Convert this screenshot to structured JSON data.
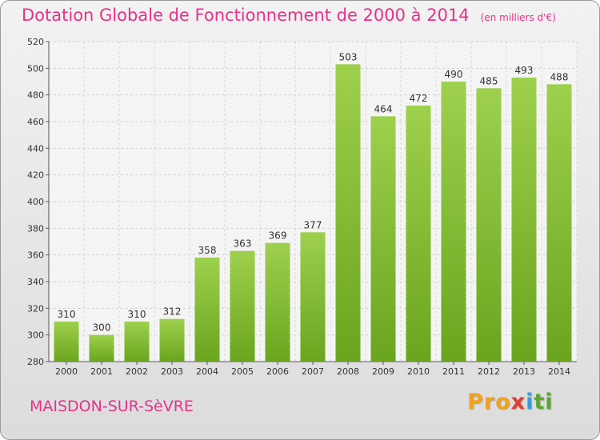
{
  "chart_data": {
    "type": "bar",
    "title": "Dotation Globale de Fonctionnement de 2000 à 2014",
    "subtitle": "(en milliers d'€)",
    "categories": [
      "2000",
      "2001",
      "2002",
      "2003",
      "2004",
      "2005",
      "2006",
      "2007",
      "2008",
      "2009",
      "2010",
      "2011",
      "2012",
      "2013",
      "2014"
    ],
    "values": [
      310,
      300,
      310,
      312,
      358,
      363,
      369,
      377,
      503,
      464,
      472,
      490,
      485,
      493,
      488
    ],
    "ylim": [
      280,
      520
    ],
    "yticks": [
      280,
      300,
      320,
      340,
      360,
      380,
      400,
      420,
      440,
      460,
      480,
      500,
      520
    ],
    "xlabel": "",
    "ylabel": "",
    "grid": true
  },
  "footer": {
    "city": "MAISDON-SUR-SèVRE",
    "logo": [
      "Pro",
      "x",
      "i",
      "ti"
    ]
  },
  "colors": {
    "accent": "#e6328a",
    "bar_light": "#9ed04d",
    "bar_dark": "#6aa51e"
  }
}
